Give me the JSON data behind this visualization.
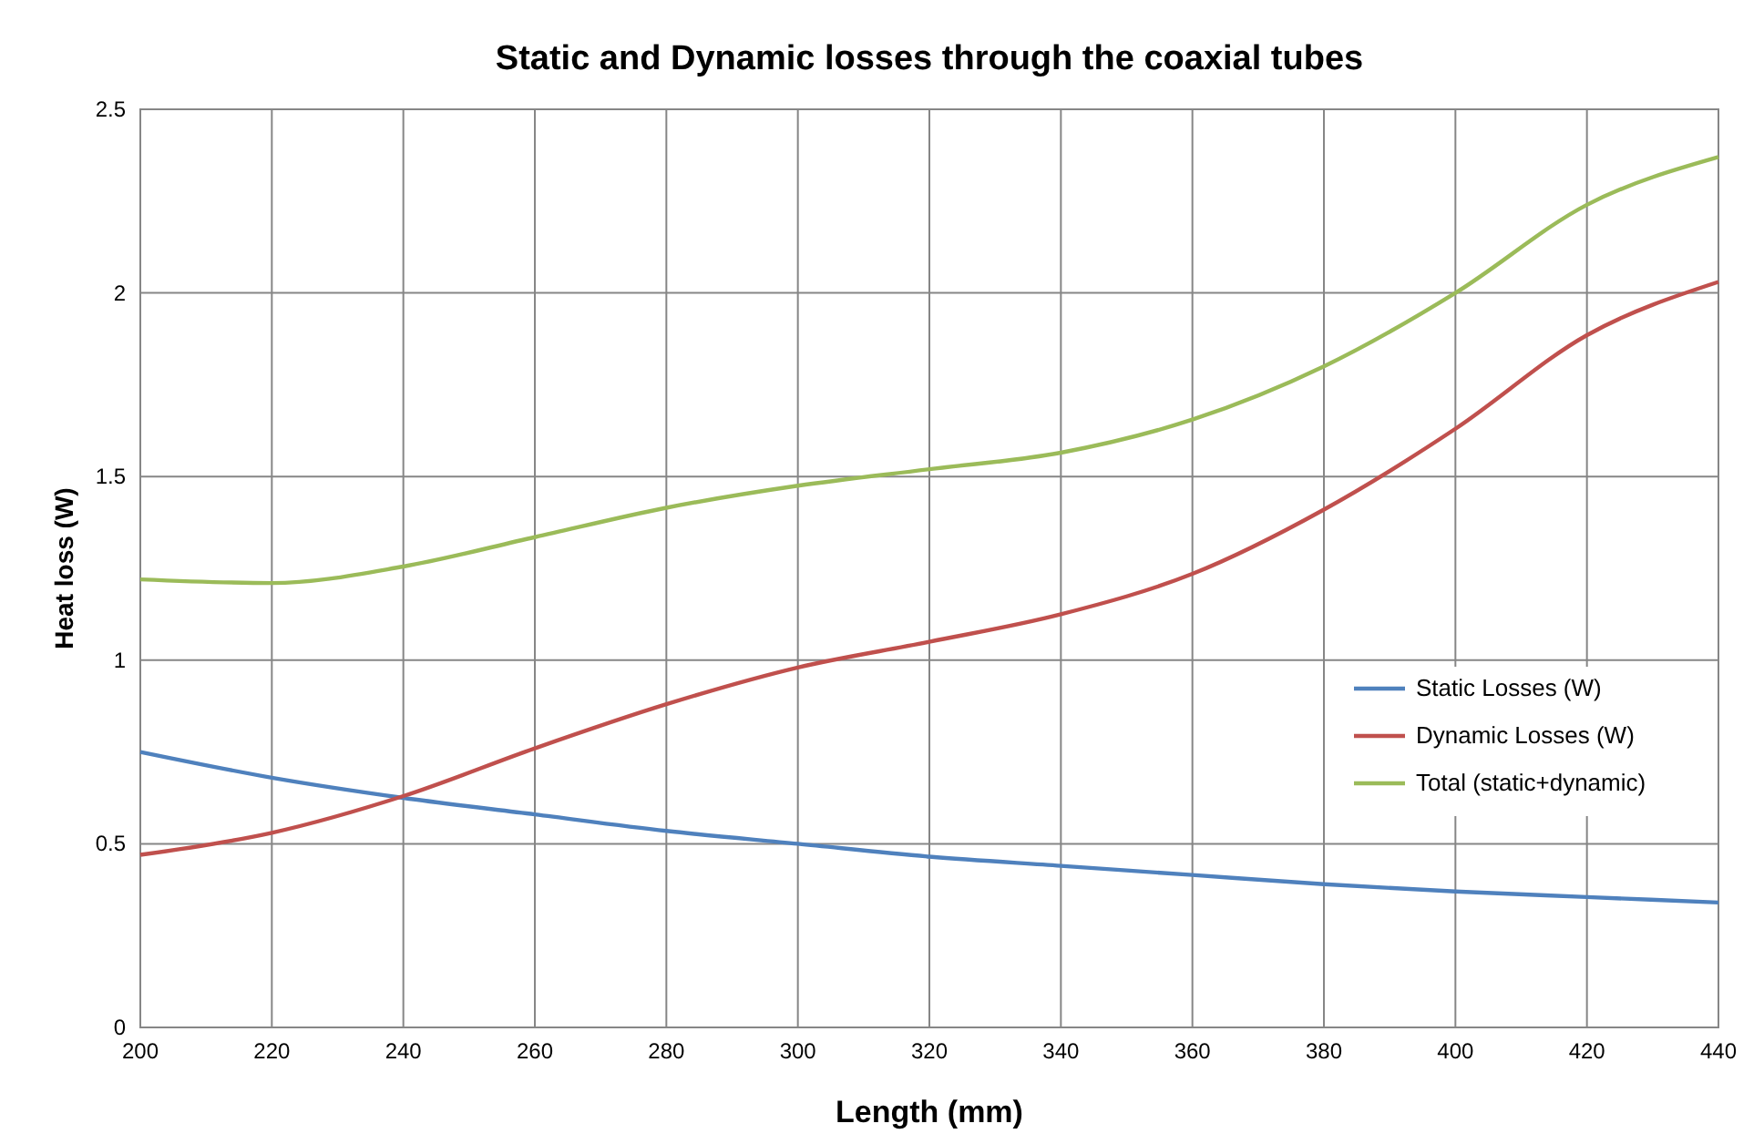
{
  "chart_data": {
    "type": "line",
    "title": "Static and Dynamic losses through the coaxial tubes",
    "xlabel": "Length (mm)",
    "ylabel": "Heat loss (W)",
    "x": [
      200,
      220,
      240,
      260,
      280,
      300,
      320,
      340,
      360,
      380,
      400,
      420,
      440
    ],
    "series": [
      {
        "name": "Static Losses (W)",
        "color": "#4f81bd",
        "values": [
          0.75,
          0.68,
          0.625,
          0.58,
          0.535,
          0.5,
          0.465,
          0.44,
          0.415,
          0.39,
          0.37,
          0.355,
          0.34
        ]
      },
      {
        "name": "Dynamic Losses (W)",
        "color": "#c0504d",
        "values": [
          0.47,
          0.53,
          0.63,
          0.76,
          0.88,
          0.98,
          1.05,
          1.125,
          1.235,
          1.41,
          1.63,
          1.885,
          2.03
        ]
      },
      {
        "name": "Total (static+dynamic)",
        "color": "#9bbb59",
        "values": [
          1.22,
          1.21,
          1.255,
          1.335,
          1.415,
          1.475,
          1.52,
          1.565,
          1.655,
          1.8,
          2.0,
          2.24,
          2.37
        ]
      }
    ],
    "xlim": [
      200,
      440
    ],
    "xticks": [
      200,
      220,
      240,
      260,
      280,
      300,
      320,
      340,
      360,
      380,
      400,
      420,
      440
    ],
    "ylim": [
      0,
      2.5
    ],
    "yticks": [
      0,
      0.5,
      1,
      1.5,
      2,
      2.5
    ],
    "grid": true,
    "legend": "right",
    "marker": "none",
    "line_style": "solid"
  }
}
